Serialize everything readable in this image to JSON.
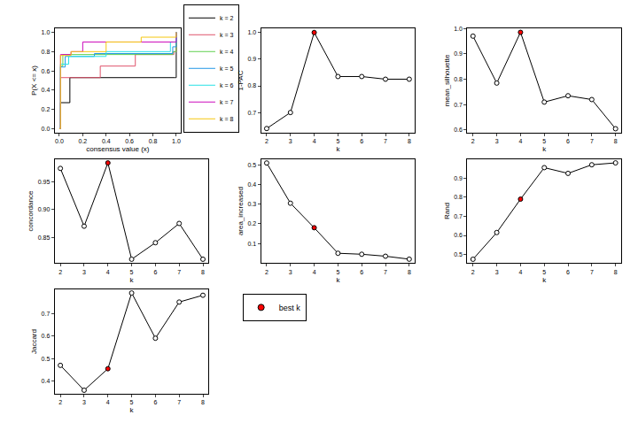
{
  "chart_data": [
    {
      "type": "line",
      "xlabel": "consensus value (x)",
      "ylabel": "P(X <= x)",
      "xlim": [
        -0.04,
        1.04
      ],
      "ylim": [
        -0.04,
        1.04
      ],
      "xticks": [
        {
          "value": 0,
          "label": "0.0"
        },
        0.2,
        0.4,
        0.6,
        0.8,
        {
          "value": 1,
          "label": "1.0"
        }
      ],
      "yticks": [
        {
          "value": 0,
          "label": "0.0"
        },
        0.2,
        0.4,
        0.6,
        0.8,
        {
          "value": 1,
          "label": "1.0"
        }
      ],
      "legend": "right",
      "line_style": "step",
      "grid": false,
      "series": [
        {
          "name": "k = 2",
          "color": "#000000",
          "x": [
            0,
            0.01,
            0.09,
            0.99,
            1.0
          ],
          "values": [
            0,
            0.27,
            0.53,
            0.53,
            1.0
          ]
        },
        {
          "name": "k = 3",
          "color": "#DF536B",
          "x": [
            0,
            0.01,
            0.35,
            0.65,
            0.98,
            1.0
          ],
          "values": [
            0,
            0.53,
            0.65,
            0.77,
            0.8,
            1.0
          ]
        },
        {
          "name": "k = 4",
          "color": "#61D04F",
          "x": [
            0,
            0.01,
            0.03,
            0.97,
            1.0
          ],
          "values": [
            0,
            0.65,
            0.77,
            0.8,
            1.0
          ]
        },
        {
          "name": "k = 5",
          "color": "#2297E6",
          "x": [
            0,
            0.01,
            0.05,
            0.3,
            0.97,
            1.0
          ],
          "values": [
            0,
            0.64,
            0.75,
            0.78,
            0.85,
            1.0
          ]
        },
        {
          "name": "k = 6",
          "color": "#28E2E5",
          "x": [
            0,
            0.01,
            0.08,
            0.4,
            0.95,
            1.0
          ],
          "values": [
            0,
            0.67,
            0.75,
            0.8,
            0.9,
            1.0
          ]
        },
        {
          "name": "k = 7",
          "color": "#CD0BBC",
          "x": [
            0,
            0.01,
            0.1,
            0.2,
            0.98,
            1.0
          ],
          "values": [
            0,
            0.77,
            0.8,
            0.9,
            0.9,
            1.0
          ]
        },
        {
          "name": "k = 8",
          "color": "#F5C710",
          "x": [
            0,
            0.01,
            0.1,
            0.4,
            0.7,
            1.0
          ],
          "values": [
            0,
            0.76,
            0.8,
            0.9,
            0.95,
            1.0
          ]
        }
      ]
    },
    {
      "type": "line",
      "xlabel": "k",
      "ylabel": "1-PAC",
      "x": [
        2,
        3,
        4,
        5,
        6,
        7,
        8
      ],
      "values": [
        0.64,
        0.7,
        1.0,
        0.835,
        0.835,
        0.825,
        0.825
      ],
      "color": "#000000",
      "colors": [
        "#ffffff",
        "#ffffff",
        "#ff0000",
        "#ffffff",
        "#ffffff",
        "#ffffff",
        "#ffffff"
      ],
      "marker": "circle",
      "xlim": [
        1.76,
        8.24
      ],
      "ylim": [
        0.625,
        1.015
      ],
      "xticks": [
        2,
        3,
        4,
        5,
        6,
        7,
        8
      ],
      "yticks": [
        0.7,
        0.8,
        0.9,
        {
          "value": 1,
          "label": "1.0"
        }
      ],
      "grid": false
    },
    {
      "type": "line",
      "xlabel": "k",
      "ylabel": "mean_silhouette",
      "x": [
        2,
        3,
        4,
        5,
        6,
        7,
        8
      ],
      "values": [
        0.97,
        0.785,
        0.985,
        0.71,
        0.735,
        0.72,
        0.605
      ],
      "color": "#000000",
      "colors": [
        "#ffffff",
        "#ffffff",
        "#ff0000",
        "#ffffff",
        "#ffffff",
        "#ffffff",
        "#ffffff"
      ],
      "marker": "circle",
      "xlim": [
        1.76,
        8.24
      ],
      "ylim": [
        0.59,
        1.0
      ],
      "xticks": [
        2,
        3,
        4,
        5,
        6,
        7,
        8
      ],
      "yticks": [
        0.6,
        0.7,
        0.8,
        0.9,
        {
          "value": 1,
          "label": "1.0"
        }
      ],
      "grid": false
    },
    {
      "type": "line",
      "xlabel": "k",
      "ylabel": "concordance",
      "x": [
        2,
        3,
        4,
        5,
        6,
        7,
        8
      ],
      "values": [
        0.975,
        0.87,
        0.985,
        0.81,
        0.84,
        0.875,
        0.81
      ],
      "color": "#000000",
      "colors": [
        "#ffffff",
        "#ffffff",
        "#ff0000",
        "#ffffff",
        "#ffffff",
        "#ffffff",
        "#ffffff"
      ],
      "marker": "circle",
      "xlim": [
        1.76,
        8.24
      ],
      "ylim": [
        0.803,
        0.992
      ],
      "xticks": [
        2,
        3,
        4,
        5,
        6,
        7,
        8
      ],
      "yticks": [
        0.85,
        {
          "value": 0.9,
          "label": "0.90"
        },
        0.95
      ],
      "grid": false
    },
    {
      "type": "line",
      "xlabel": "k",
      "ylabel": "area_increased",
      "x": [
        2,
        3,
        4,
        5,
        6,
        7,
        8
      ],
      "values": [
        0.51,
        0.305,
        0.18,
        0.05,
        0.045,
        0.035,
        0.02
      ],
      "color": "#000000",
      "colors": [
        "#ffffff",
        "#ffffff",
        "#ff0000",
        "#ffffff",
        "#ffffff",
        "#ffffff",
        "#ffffff"
      ],
      "marker": "circle",
      "xlim": [
        1.76,
        8.24
      ],
      "ylim": [
        0.0,
        0.53
      ],
      "xticks": [
        2,
        3,
        4,
        5,
        6,
        7,
        8
      ],
      "yticks": [
        0.1,
        0.2,
        0.3,
        0.4,
        0.5
      ],
      "grid": false
    },
    {
      "type": "line",
      "xlabel": "k",
      "ylabel": "Rand",
      "x": [
        2,
        3,
        4,
        5,
        6,
        7,
        8
      ],
      "values": [
        0.475,
        0.615,
        0.79,
        0.955,
        0.925,
        0.97,
        0.98
      ],
      "color": "#000000",
      "colors": [
        "#ffffff",
        "#ffffff",
        "#ff0000",
        "#ffffff",
        "#ffffff",
        "#ffffff",
        "#ffffff"
      ],
      "marker": "circle",
      "xlim": [
        1.76,
        8.24
      ],
      "ylim": [
        0.455,
        1.0
      ],
      "xticks": [
        2,
        3,
        4,
        5,
        6,
        7,
        8
      ],
      "yticks": [
        0.5,
        0.6,
        0.7,
        0.8,
        0.9
      ],
      "grid": false
    },
    {
      "type": "line",
      "xlabel": "k",
      "ylabel": "Jaccard",
      "x": [
        2,
        3,
        4,
        5,
        6,
        7,
        8
      ],
      "values": [
        0.47,
        0.36,
        0.455,
        0.79,
        0.59,
        0.75,
        0.78
      ],
      "color": "#000000",
      "colors": [
        "#ffffff",
        "#ffffff",
        "#ff0000",
        "#ffffff",
        "#ffffff",
        "#ffffff",
        "#ffffff"
      ],
      "marker": "circle",
      "xlim": [
        1.76,
        8.24
      ],
      "ylim": [
        0.345,
        0.805
      ],
      "xticks": [
        2,
        3,
        4,
        5,
        6,
        7,
        8
      ],
      "yticks": [
        0.4,
        0.5,
        0.6,
        0.7
      ],
      "grid": false
    },
    {
      "type": "legend",
      "series": [
        {
          "name": "best k",
          "color": "#ff0000",
          "marker": "circle"
        }
      ]
    }
  ]
}
